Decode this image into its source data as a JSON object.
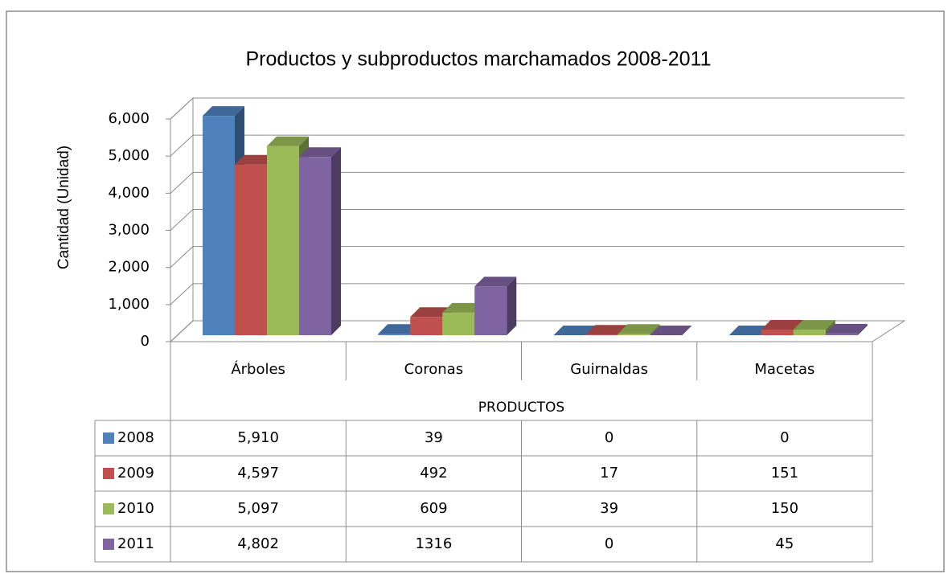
{
  "chart_data": {
    "type": "bar3d",
    "title": "Productos y subproductos marchamados 2008-2011",
    "y_label": "Cantidad (Unidad)",
    "x_label": "PRODUCTOS",
    "categories": [
      "Árboles",
      "Coronas",
      "Guirnaldas",
      "Macetas"
    ],
    "series": [
      {
        "name": "2008",
        "color": "#4f81bd",
        "values": [
          5910,
          39,
          0,
          0
        ],
        "value_labels": [
          "5,910",
          "39",
          "0",
          "0"
        ]
      },
      {
        "name": "2009",
        "color": "#c0504d",
        "values": [
          4597,
          492,
          17,
          151
        ],
        "value_labels": [
          "4,597",
          "492",
          "17",
          "151"
        ]
      },
      {
        "name": "2010",
        "color": "#9bbb59",
        "values": [
          5097,
          609,
          39,
          150
        ],
        "value_labels": [
          "5,097",
          "609",
          "39",
          "150"
        ]
      },
      {
        "name": "2011",
        "color": "#8064a2",
        "values": [
          4802,
          1316,
          0,
          45
        ],
        "value_labels": [
          "4,802",
          "1316",
          "0",
          "45"
        ]
      }
    ],
    "ylim": [
      0,
      6000
    ],
    "yticks": [
      0,
      {
        "value": 1000,
        "label": "1,000"
      },
      {
        "value": 2000,
        "label": "2,000"
      },
      {
        "value": 3000,
        "label": "3,000"
      },
      {
        "value": 4000,
        "label": "4,000"
      },
      {
        "value": 5000,
        "label": "5,000"
      },
      {
        "value": 6000,
        "label": "6,000"
      }
    ],
    "grid": true
  }
}
